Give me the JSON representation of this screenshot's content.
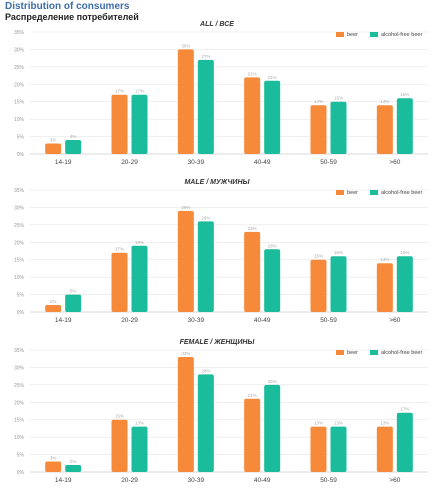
{
  "header": {
    "title_en": "Distribution of consumers",
    "title_ru": "Распределение потребителей"
  },
  "colors": {
    "beer": "#f7893a",
    "alcohol_free": "#1abc9c"
  },
  "chart_data": [
    {
      "type": "bar",
      "title": "ALL / ВСЕ",
      "categories": [
        "14-19",
        "20-29",
        "30-39",
        "40-49",
        "50-59",
        ">60"
      ],
      "series": [
        {
          "name": "beer",
          "values": [
            3,
            17,
            30,
            22,
            14,
            14
          ]
        },
        {
          "name": "alcohol-free beer",
          "values": [
            4,
            17,
            27,
            21,
            15,
            16
          ]
        }
      ],
      "ylim": [
        0,
        35
      ],
      "yticks": [
        "0%",
        "5%",
        "10%",
        "15%",
        "20%",
        "25%",
        "30%",
        "35%"
      ],
      "legend": "top-right",
      "grid": true
    },
    {
      "type": "bar",
      "title": "MALE / МУЖЧИНЫ",
      "categories": [
        "14-19",
        "20-29",
        "30-39",
        "40-49",
        "50-59",
        ">60"
      ],
      "series": [
        {
          "name": "beer",
          "values": [
            2,
            17,
            29,
            23,
            15,
            14
          ]
        },
        {
          "name": "alcohol-free beer",
          "values": [
            5,
            19,
            26,
            18,
            16,
            16
          ]
        }
      ],
      "ylim": [
        0,
        35
      ],
      "yticks": [
        "0%",
        "5%",
        "10%",
        "15%",
        "20%",
        "25%",
        "30%",
        "35%"
      ],
      "legend": "top-right",
      "grid": true
    },
    {
      "type": "bar",
      "title": "FEMALE / ЖЕНЩИНЫ",
      "categories": [
        "14-19",
        "20-29",
        "30-39",
        "40-49",
        "50-59",
        ">60"
      ],
      "series": [
        {
          "name": "beer",
          "values": [
            3,
            15,
            33,
            21,
            13,
            13
          ]
        },
        {
          "name": "alcohol-free beer",
          "values": [
            2,
            13,
            28,
            25,
            13,
            17
          ]
        }
      ],
      "ylim": [
        0,
        35
      ],
      "yticks": [
        "0%",
        "5%",
        "10%",
        "15%",
        "20%",
        "25%",
        "30%",
        "35%"
      ],
      "legend": "top-right",
      "grid": true
    }
  ]
}
